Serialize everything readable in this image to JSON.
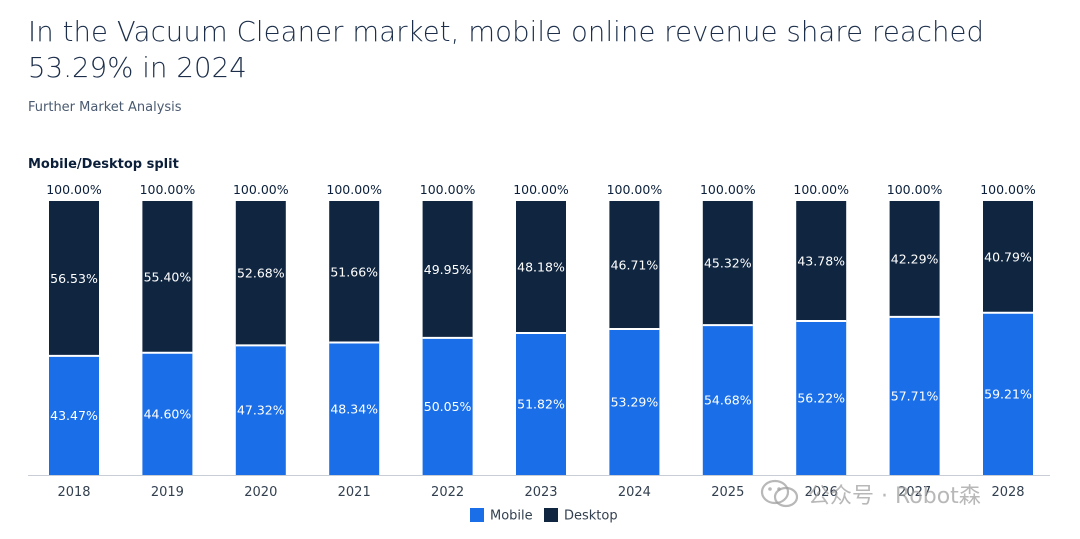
{
  "title": "In the Vacuum Cleaner market, mobile online revenue share reached 53.29% in 2024",
  "subtitle": "Further Market Analysis",
  "section_label": "Mobile/Desktop split",
  "watermark": "公众号 · Robot森",
  "colors": {
    "mobile": "#1a6fe8",
    "desktop": "#102640",
    "text": "#0b1f3a"
  },
  "chart_data": {
    "type": "bar",
    "stacked": true,
    "categories": [
      "2018",
      "2019",
      "2020",
      "2021",
      "2022",
      "2023",
      "2024",
      "2025",
      "2026",
      "2027",
      "2028"
    ],
    "series": [
      {
        "name": "Mobile",
        "values": [
          43.47,
          44.6,
          47.32,
          48.34,
          50.05,
          51.82,
          53.29,
          54.68,
          56.22,
          57.71,
          59.21
        ],
        "labels": [
          "43.47%",
          "44.60%",
          "47.32%",
          "48.34%",
          "50.05%",
          "51.82%",
          "53.29%",
          "54.68%",
          "56.22%",
          "57.71%",
          "59.21%"
        ]
      },
      {
        "name": "Desktop",
        "values": [
          56.53,
          55.4,
          52.68,
          51.66,
          49.95,
          48.18,
          46.71,
          45.32,
          43.78,
          42.29,
          40.79
        ],
        "labels": [
          "56.53%",
          "55.40%",
          "52.68%",
          "51.66%",
          "49.95%",
          "48.18%",
          "46.71%",
          "45.32%",
          "43.78%",
          "42.29%",
          "40.79%"
        ]
      }
    ],
    "totals": [
      "100.00%",
      "100.00%",
      "100.00%",
      "100.00%",
      "100.00%",
      "100.00%",
      "100.00%",
      "100.00%",
      "100.00%",
      "100.00%",
      "100.00%"
    ],
    "ylim": [
      0,
      100
    ],
    "legend": [
      "Mobile",
      "Desktop"
    ],
    "legend_position": "bottom-center"
  }
}
